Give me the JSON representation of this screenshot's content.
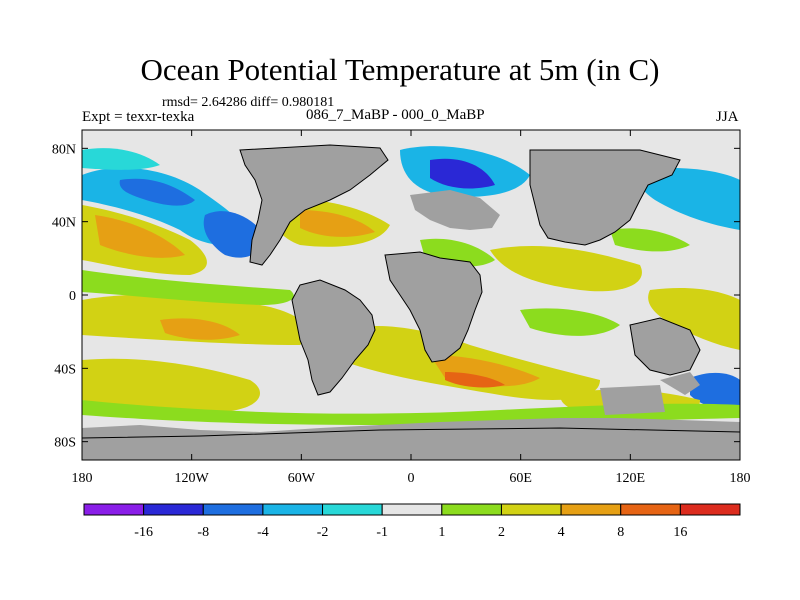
{
  "title": "Ocean Potential Temperature at 5m (in C)",
  "stats_line": "rmsd= 2.64286 diff= 0.980181",
  "expt_label": "Expt = texxr-texka",
  "cases_label": "086_7_MaBP - 000_0_MaBP",
  "season": "JJA",
  "map": {
    "lat_ticks": [
      "80N",
      "40N",
      "0",
      "40S",
      "80S"
    ],
    "lat_values": [
      80,
      40,
      0,
      -40,
      -80
    ],
    "lon_ticks": [
      "180",
      "120W",
      "60W",
      "0",
      "60E",
      "120E",
      "180"
    ],
    "lon_values": [
      -180,
      -120,
      -60,
      0,
      60,
      120,
      180
    ],
    "lat_range": [
      -90,
      90
    ],
    "lon_range": [
      -180,
      180
    ]
  },
  "colorbar": {
    "labels": [
      "-16",
      "-8",
      "-4",
      "-2",
      "-1",
      "1",
      "2",
      "4",
      "8",
      "16"
    ],
    "colors": [
      "#8a1ee8",
      "#2a28d6",
      "#1e6ee0",
      "#1ab4e6",
      "#28d8d8",
      "#e6e6e6",
      "#8cdc1e",
      "#d2d214",
      "#e6a014",
      "#e66414",
      "#dc2c1e"
    ]
  },
  "colors": {
    "land": "#a0a0a0",
    "coast": "#000000",
    "background": "#ffffff"
  }
}
